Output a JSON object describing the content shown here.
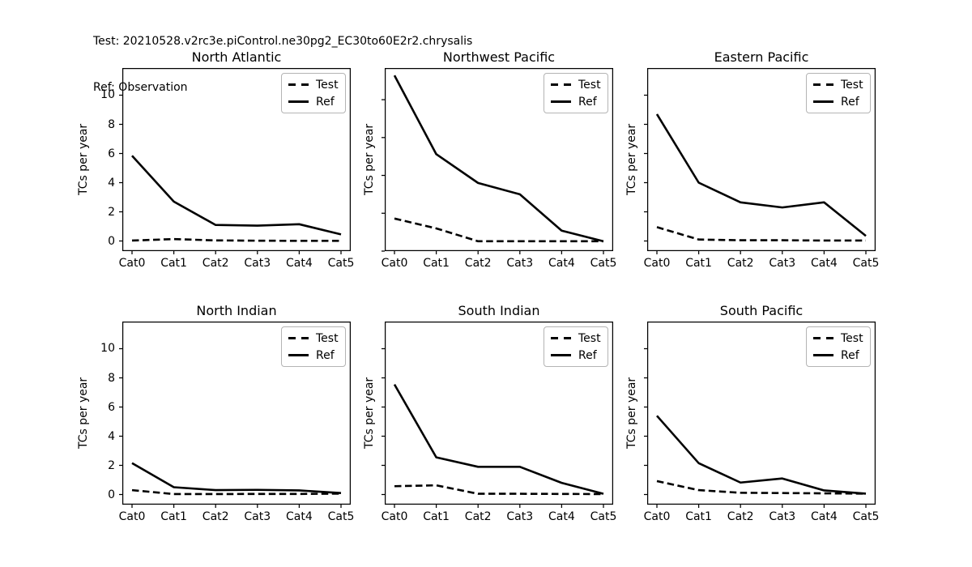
{
  "header": {
    "test_line": "Test: 20210528.v2rc3e.piControl.ne30pg2_EC30to60E2r2.chrysalis",
    "ref_line": "Ref: Observation"
  },
  "legend": {
    "test_label": "Test",
    "ref_label": "Ref"
  },
  "colors": {
    "line": "#000000",
    "legend_border": "#b4b4b4",
    "background": "#ffffff",
    "text": "#000000"
  },
  "chart_data": [
    {
      "type": "line",
      "title": "North Atlantic",
      "ylabel": "TCs per year",
      "xlabel": "",
      "categories": [
        "Cat0",
        "Cat1",
        "Cat2",
        "Cat3",
        "Cat4",
        "Cat5"
      ],
      "ylim": [
        -0.694,
        11.861
      ],
      "yticks": [
        0,
        2,
        4,
        6,
        8,
        10
      ],
      "ytick_labels_shown": true,
      "legend_position": "upper right",
      "grid": false,
      "series": [
        {
          "name": "Test",
          "style": "dashed",
          "values": [
            0.03,
            0.13,
            0.04,
            0.02,
            0.01,
            0.01
          ]
        },
        {
          "name": "Ref",
          "style": "solid",
          "values": [
            5.85,
            2.7,
            1.1,
            1.05,
            1.15,
            0.45
          ]
        }
      ]
    },
    {
      "type": "line",
      "title": "Northwest Pacific",
      "ylabel": "TCs per year",
      "xlabel": "",
      "categories": [
        "Cat0",
        "Cat1",
        "Cat2",
        "Cat3",
        "Cat4",
        "Cat5"
      ],
      "ylim": [
        0,
        12.09
      ],
      "yticks": [
        0,
        2.5,
        5,
        7.5,
        10
      ],
      "ytick_labels_shown": false,
      "legend_position": "upper right",
      "grid": false,
      "series": [
        {
          "name": "Test",
          "style": "dashed",
          "values": [
            2.15,
            1.5,
            0.65,
            0.65,
            0.65,
            0.65
          ]
        },
        {
          "name": "Ref",
          "style": "solid",
          "values": [
            11.6,
            6.4,
            4.5,
            3.75,
            1.35,
            0.65
          ]
        }
      ]
    },
    {
      "type": "line",
      "title": "Eastern Pacific",
      "ylabel": "TCs per year",
      "xlabel": "",
      "categories": [
        "Cat0",
        "Cat1",
        "Cat2",
        "Cat3",
        "Cat4",
        "Cat5"
      ],
      "ylim": [
        -0.694,
        11.861
      ],
      "yticks": [
        0,
        2,
        4,
        6,
        8,
        10
      ],
      "ytick_labels_shown": false,
      "legend_position": "upper right",
      "grid": false,
      "series": [
        {
          "name": "Test",
          "style": "dashed",
          "values": [
            0.95,
            0.1,
            0.05,
            0.05,
            0.03,
            0.03
          ]
        },
        {
          "name": "Ref",
          "style": "solid",
          "values": [
            8.7,
            4.0,
            2.65,
            2.3,
            2.65,
            0.35
          ]
        }
      ]
    },
    {
      "type": "line",
      "title": "North Indian",
      "ylabel": "TCs per year",
      "xlabel": "",
      "categories": [
        "Cat0",
        "Cat1",
        "Cat2",
        "Cat3",
        "Cat4",
        "Cat5"
      ],
      "ylim": [
        -0.694,
        11.861
      ],
      "yticks": [
        0,
        2,
        4,
        6,
        8,
        10
      ],
      "ytick_labels_shown": true,
      "legend_position": "upper right",
      "grid": false,
      "series": [
        {
          "name": "Test",
          "style": "dashed",
          "values": [
            0.3,
            0.03,
            0.03,
            0.04,
            0.04,
            0.06
          ]
        },
        {
          "name": "Ref",
          "style": "solid",
          "values": [
            2.15,
            0.5,
            0.3,
            0.32,
            0.28,
            0.1
          ]
        }
      ]
    },
    {
      "type": "line",
      "title": "South Indian",
      "ylabel": "TCs per year",
      "xlabel": "",
      "categories": [
        "Cat0",
        "Cat1",
        "Cat2",
        "Cat3",
        "Cat4",
        "Cat5"
      ],
      "ylim": [
        -0.694,
        11.861
      ],
      "yticks": [
        0,
        2,
        4,
        6,
        8,
        10
      ],
      "ytick_labels_shown": false,
      "legend_position": "upper right",
      "grid": false,
      "series": [
        {
          "name": "Test",
          "style": "dashed",
          "values": [
            0.57,
            0.63,
            0.05,
            0.05,
            0.04,
            0.03
          ]
        },
        {
          "name": "Ref",
          "style": "solid",
          "values": [
            7.55,
            2.55,
            1.9,
            1.9,
            0.8,
            0.05
          ]
        }
      ]
    },
    {
      "type": "line",
      "title": "South Pacific",
      "ylabel": "TCs per year",
      "xlabel": "",
      "categories": [
        "Cat0",
        "Cat1",
        "Cat2",
        "Cat3",
        "Cat4",
        "Cat5"
      ],
      "ylim": [
        -0.694,
        11.861
      ],
      "yticks": [
        0,
        2,
        4,
        6,
        8,
        10
      ],
      "ytick_labels_shown": false,
      "legend_position": "upper right",
      "grid": false,
      "series": [
        {
          "name": "Test",
          "style": "dashed",
          "values": [
            0.92,
            0.3,
            0.12,
            0.1,
            0.08,
            0.06
          ]
        },
        {
          "name": "Ref",
          "style": "solid",
          "values": [
            5.4,
            2.15,
            0.82,
            1.1,
            0.28,
            0.06
          ]
        }
      ]
    }
  ]
}
